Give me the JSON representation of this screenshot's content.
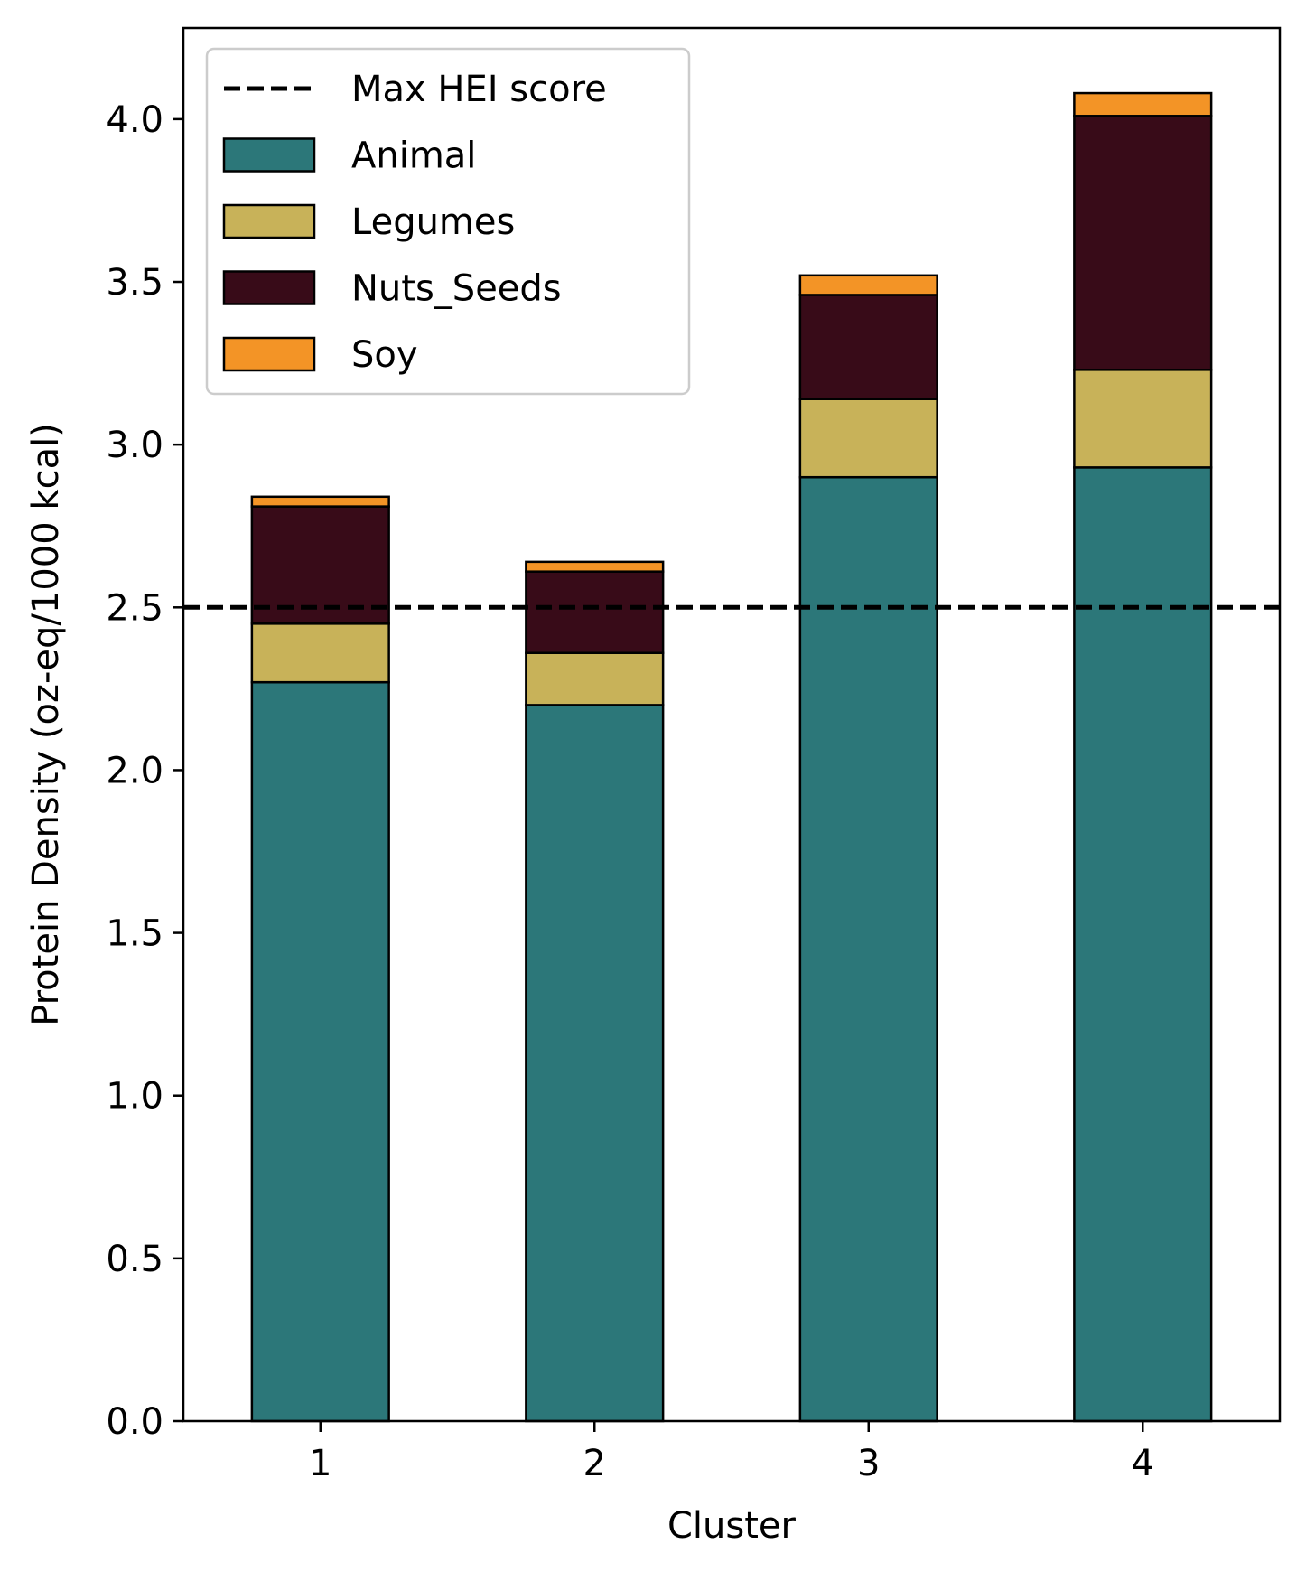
{
  "chart_data": {
    "type": "bar",
    "stacked": true,
    "title": "",
    "xlabel": "Cluster",
    "ylabel": "Protein Density (oz-eq/1000 kcal)",
    "categories": [
      "1",
      "2",
      "3",
      "4"
    ],
    "ylim": [
      0,
      4.28
    ],
    "yticks": [
      "0.0",
      "0.5",
      "1.0",
      "1.5",
      "2.0",
      "2.5",
      "3.0",
      "3.5",
      "4.0"
    ],
    "grid": false,
    "legend_position": "top-left",
    "series": [
      {
        "name": "Animal",
        "color": "#2c7779",
        "values": [
          2.27,
          2.2,
          2.9,
          2.93
        ]
      },
      {
        "name": "Legumes",
        "color": "#c8b259",
        "values": [
          0.18,
          0.16,
          0.24,
          0.3
        ]
      },
      {
        "name": "Nuts_Seeds",
        "color": "#380b18",
        "values": [
          0.36,
          0.25,
          0.32,
          0.78
        ]
      },
      {
        "name": "Soy",
        "color": "#f39426",
        "values": [
          0.03,
          0.03,
          0.06,
          0.07
        ]
      }
    ],
    "reference_line": {
      "name": "Max HEI score",
      "value": 2.5,
      "style": "dashed",
      "color": "#000000"
    }
  }
}
